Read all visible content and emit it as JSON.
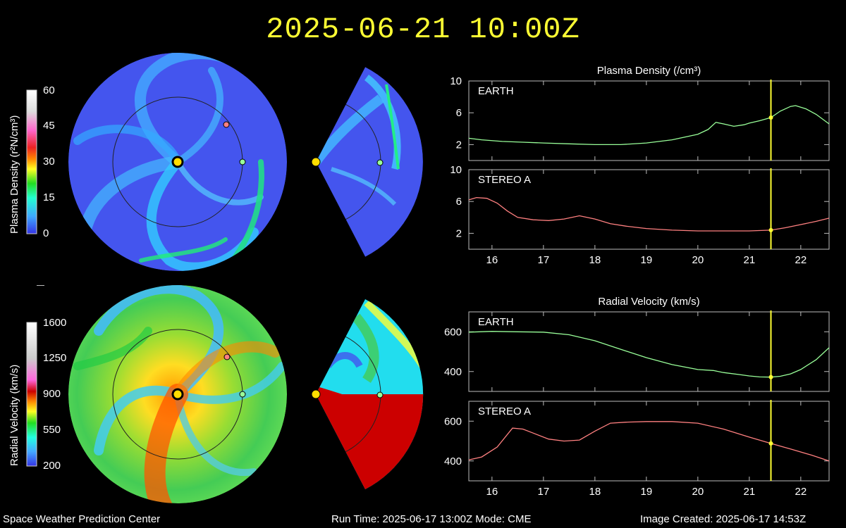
{
  "title": "2025-06-21 10:00Z",
  "footer": {
    "left": "Space Weather Prediction Center",
    "run": "Run Time: 2025-06-17 13:00Z  Mode: CME",
    "created": "Image Created: 2025-06-17 14:53Z"
  },
  "colors": {
    "accent_yellow": "#ffff33",
    "earth_line": "#99ff99",
    "stereo_line": "#ff8080",
    "background": "#000000"
  },
  "colorbars": {
    "density": {
      "label": "Plasma Density (r²N/cm³)",
      "ticks": [
        "60",
        "45",
        "30",
        "15",
        "0"
      ]
    },
    "velocity": {
      "label": "Radial Velocity (km/s)",
      "ticks": [
        "1600",
        "1250",
        "900",
        "550",
        "200"
      ]
    }
  },
  "chart_data": [
    {
      "type": "line",
      "title": "Plasma Density (/cm³)",
      "xlabel": "",
      "ylabel": "",
      "xlim": [
        15.55,
        22.55
      ],
      "x_ticks": [
        "16",
        "17",
        "18",
        "19",
        "20",
        "21",
        "22"
      ],
      "current_time": 21.42,
      "panels": [
        {
          "label": "EARTH",
          "color": "#99ff99",
          "ylim": [
            0,
            10
          ],
          "y_ticks": [
            "10",
            "6",
            "2"
          ],
          "x": [
            15.55,
            15.8,
            16.2,
            16.6,
            17.0,
            17.5,
            18.0,
            18.5,
            19.0,
            19.5,
            20.0,
            20.2,
            20.35,
            20.5,
            20.7,
            20.9,
            21.0,
            21.2,
            21.42,
            21.6,
            21.8,
            21.9,
            22.1,
            22.3,
            22.55
          ],
          "y": [
            2.8,
            2.6,
            2.4,
            2.3,
            2.2,
            2.1,
            2.0,
            2.0,
            2.2,
            2.6,
            3.3,
            3.9,
            4.8,
            4.6,
            4.3,
            4.5,
            4.7,
            5.0,
            5.4,
            6.2,
            6.8,
            6.9,
            6.5,
            5.8,
            4.6
          ]
        },
        {
          "label": "STEREO A",
          "color": "#ff8080",
          "ylim": [
            0,
            10
          ],
          "y_ticks": [
            "10",
            "6",
            "2"
          ],
          "x": [
            15.55,
            15.7,
            15.9,
            16.1,
            16.3,
            16.5,
            16.8,
            17.1,
            17.4,
            17.7,
            18.0,
            18.3,
            18.6,
            19.0,
            19.5,
            20.0,
            20.5,
            21.0,
            21.42,
            21.7,
            22.0,
            22.3,
            22.55
          ],
          "y": [
            6.2,
            6.5,
            6.4,
            5.8,
            4.8,
            4.0,
            3.7,
            3.6,
            3.8,
            4.2,
            3.8,
            3.2,
            2.9,
            2.6,
            2.4,
            2.3,
            2.3,
            2.3,
            2.4,
            2.7,
            3.1,
            3.5,
            3.9
          ]
        }
      ]
    },
    {
      "type": "line",
      "title": "Radial Velocity (km/s)",
      "xlabel": "",
      "ylabel": "",
      "xlim": [
        15.55,
        22.55
      ],
      "x_ticks": [
        "16",
        "17",
        "18",
        "19",
        "20",
        "21",
        "22"
      ],
      "current_time": 21.42,
      "panels": [
        {
          "label": "EARTH",
          "color": "#99ff99",
          "ylim": [
            300,
            700
          ],
          "y_ticks": [
            "600",
            "400"
          ],
          "x": [
            15.55,
            16.0,
            16.5,
            17.0,
            17.5,
            18.0,
            18.5,
            19.0,
            19.5,
            20.0,
            20.3,
            20.5,
            20.8,
            21.0,
            21.2,
            21.42,
            21.6,
            21.8,
            22.0,
            22.3,
            22.55
          ],
          "y": [
            598,
            602,
            600,
            598,
            585,
            555,
            512,
            470,
            435,
            410,
            405,
            395,
            385,
            378,
            373,
            372,
            376,
            388,
            410,
            460,
            520
          ]
        },
        {
          "label": "STEREO A",
          "color": "#ff8080",
          "ylim": [
            300,
            700
          ],
          "y_ticks": [
            "600",
            "400"
          ],
          "x": [
            15.55,
            15.8,
            16.1,
            16.4,
            16.6,
            16.8,
            17.1,
            17.4,
            17.7,
            18.0,
            18.3,
            18.6,
            19.0,
            19.5,
            20.0,
            20.5,
            21.0,
            21.42,
            21.8,
            22.2,
            22.55
          ],
          "y": [
            405,
            420,
            470,
            565,
            560,
            540,
            510,
            500,
            505,
            550,
            590,
            595,
            598,
            598,
            590,
            560,
            520,
            488,
            460,
            430,
            400
          ]
        }
      ]
    }
  ]
}
